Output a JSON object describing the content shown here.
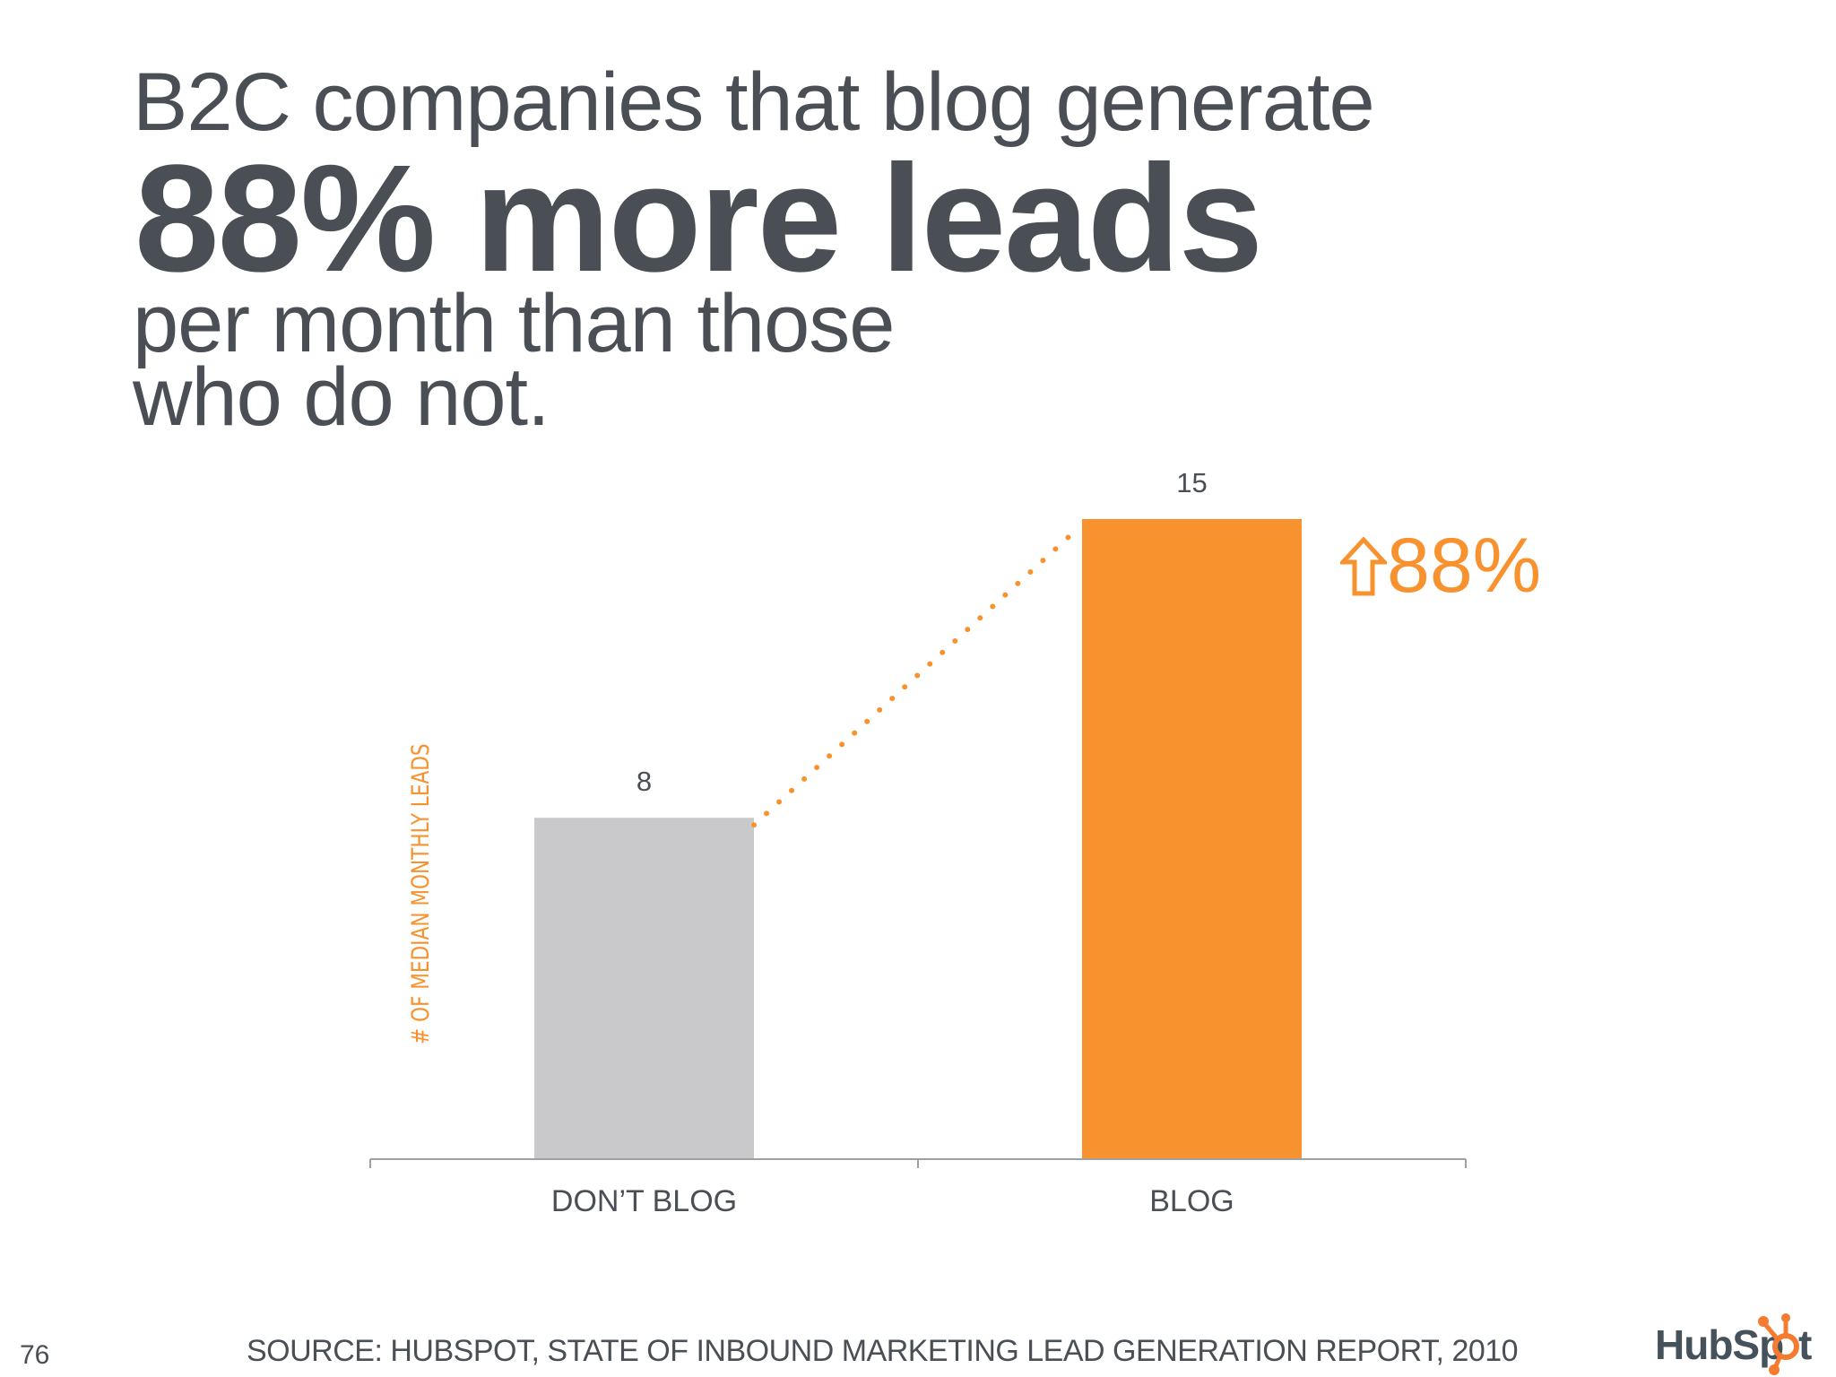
{
  "title": {
    "line1": "B2C companies that blog generate",
    "line2": "88% more leads",
    "line3": "per month than those",
    "line4": "who do not."
  },
  "chart_data": {
    "type": "bar",
    "categories": [
      "DON’T BLOG",
      "BLOG"
    ],
    "values": [
      8,
      15
    ],
    "data_labels": [
      "8",
      "15"
    ],
    "ylabel": "# OF MEDIAN MONTHLY LEADS",
    "ylim": [
      0,
      15
    ],
    "grid": false,
    "bar_colors": [
      "#c9c9cb",
      "#f7922f"
    ],
    "annotation": {
      "text": "88%",
      "icon": "hollow-up-arrow-icon",
      "color": "#f7922f"
    },
    "connector": "dotted-line"
  },
  "footer": {
    "source": "SOURCE: HUBSPOT, STATE OF INBOUND MARKETING LEAD GENERATION REPORT, 2010",
    "page_number": "76",
    "logo_text": "HubSpot"
  },
  "colors": {
    "text": "#4a4f55",
    "accent": "#f7922f",
    "axis": "#a0a0a0"
  }
}
